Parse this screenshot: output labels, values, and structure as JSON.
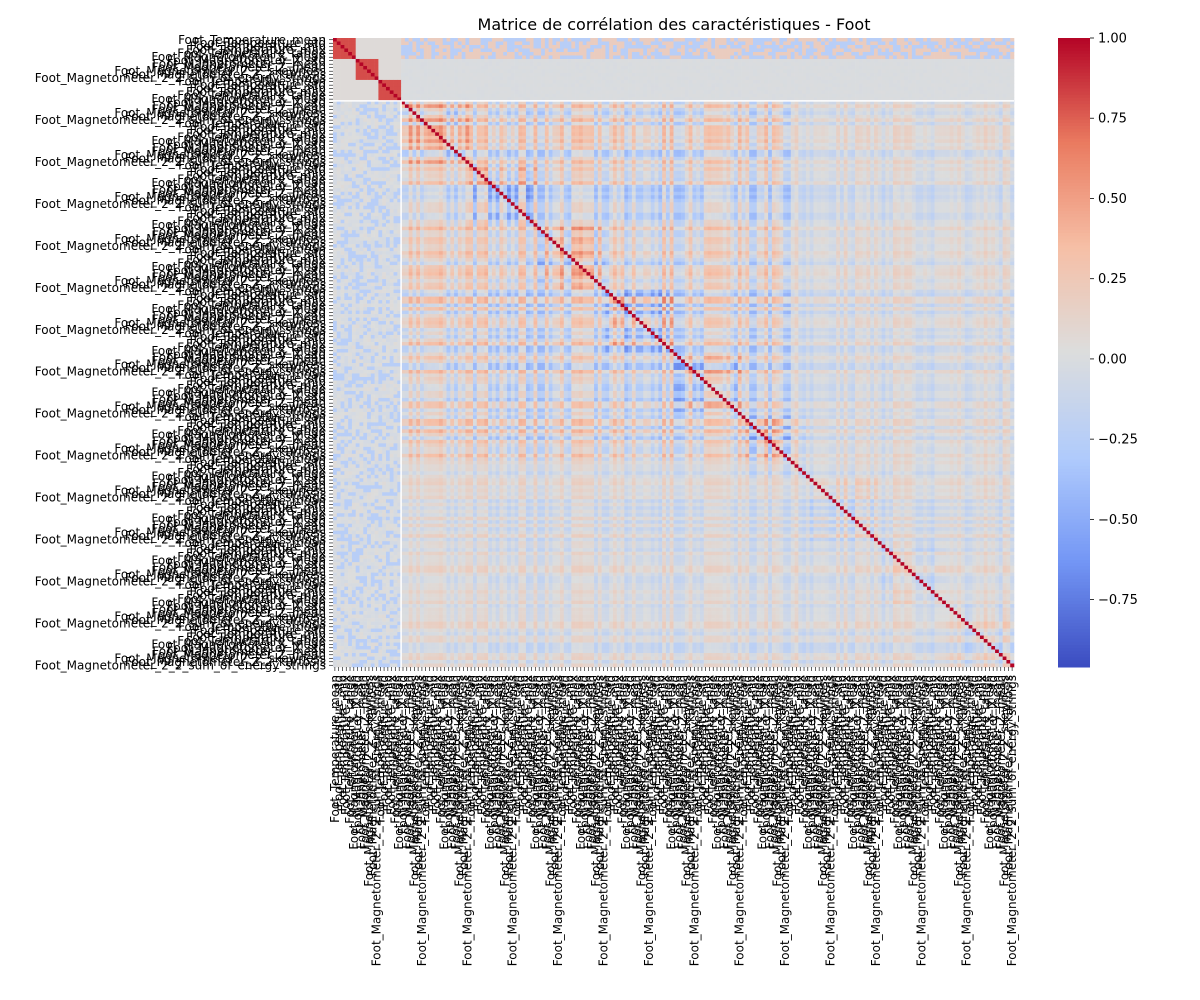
{
  "chart_data": {
    "type": "heatmap",
    "title": "Matrice de corrélation des caractéristiques - Foot",
    "xlabel": "",
    "ylabel": "",
    "colormap": "coolwarm",
    "colormap_stops": [
      "#3b4cc0",
      "#7396f5",
      "#b0cbfc",
      "#dcdddd",
      "#f6bfa6",
      "#ea7b60",
      "#b40426"
    ],
    "value_range": [
      -0.96,
      1.0
    ],
    "colorbar_ticks": [
      -0.75,
      -0.5,
      -0.25,
      0.0,
      0.25,
      0.5,
      0.75,
      1.0
    ],
    "colorbar_tick_labels": [
      "−0.75",
      "−0.50",
      "−0.25",
      "0.00",
      "0.25",
      "0.50",
      "0.75",
      "1.00"
    ],
    "matrix_size": 180,
    "group_block_size": 18,
    "diagonal_value": 1.0,
    "visible_feature_labels": [
      "Foot_Temperature_mean",
      "Foot_Temperature_std",
      "Foot_Temperature_min",
      "Foot_Temperature_max",
      "Foot_Temperature_range",
      "Foot_Magnetometer_X_mean",
      "Foot_Magnetometer_X_std",
      "Foot_Magnetometer_Y_mean",
      "Foot_Magnetometer_Z_mean",
      "Foot_Magnetometer_Z_2_skewness",
      "Foot_Magnetometer_Z_2_kurtosis",
      "Foot_Magnetometer_2_2_sum_of_energy_strings"
    ]
  }
}
